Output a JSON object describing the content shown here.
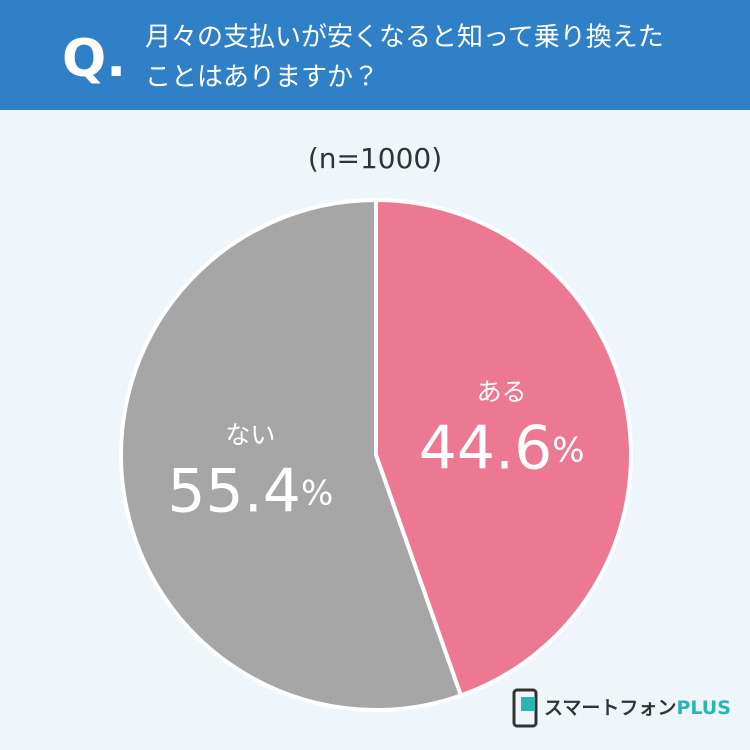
{
  "chart_data": {
    "type": "pie",
    "badge": "Q.",
    "title": [
      "月々の支払いが安くなると知って乗り換えた",
      "ことはありますか？"
    ],
    "subtitle": "(n=1000)",
    "categories": [
      "ある",
      "ない"
    ],
    "values": [
      44.6,
      55.4
    ],
    "value_labels": [
      "44.6%",
      "55.4%"
    ],
    "colors": [
      "#ec7891",
      "#a6a6a6"
    ],
    "logo": {
      "text": "スマートフォン",
      "accent": "PLUS"
    }
  }
}
